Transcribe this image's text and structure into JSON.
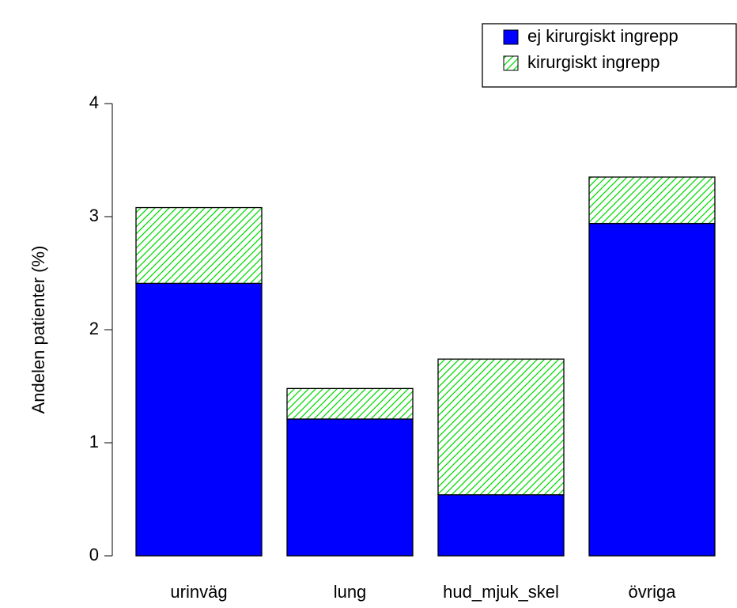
{
  "chart_data": {
    "type": "stacked_bar",
    "y_label": "Andelen patienter (%)",
    "categories": [
      "urinväg",
      "lung",
      "hud_mjuk_skel",
      "övriga"
    ],
    "series": [
      {
        "name": "ej kirurgiskt ingrepp",
        "color": "#0000ff",
        "hatch": false,
        "values": [
          2.41,
          1.21,
          0.54,
          2.94
        ]
      },
      {
        "name": "kirurgiskt ingrepp",
        "color": "#00dd00",
        "hatch": true,
        "values": [
          0.67,
          0.27,
          1.2,
          0.41
        ]
      }
    ],
    "ylim": [
      0,
      4
    ],
    "yticks": [
      0,
      1,
      2,
      3,
      4
    ],
    "legend": "top-right"
  }
}
